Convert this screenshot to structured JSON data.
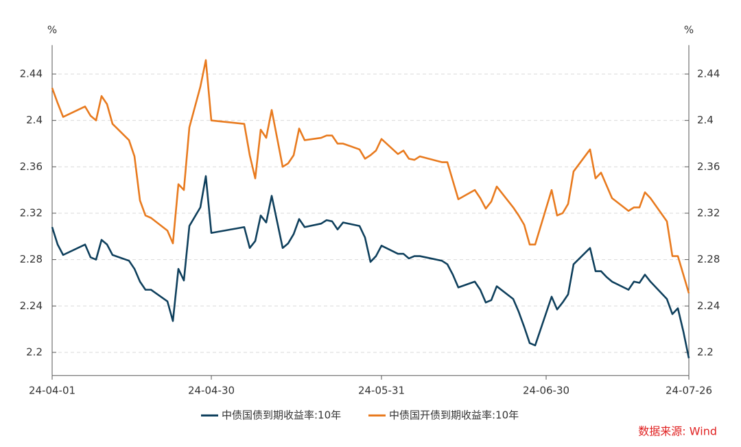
{
  "chart_data": {
    "type": "line",
    "y_unit": "%",
    "y2_unit": "%",
    "source": "数据来源: Wind",
    "x": [
      "24-04-01",
      "24-04-02",
      "24-04-03",
      "24-04-07",
      "24-04-08",
      "24-04-09",
      "24-04-10",
      "24-04-11",
      "24-04-12",
      "24-04-15",
      "24-04-16",
      "24-04-17",
      "24-04-18",
      "24-04-19",
      "24-04-22",
      "24-04-23",
      "24-04-24",
      "24-04-25",
      "24-04-26",
      "24-04-28",
      "24-04-29",
      "24-04-30",
      "24-05-06",
      "24-05-07",
      "24-05-08",
      "24-05-09",
      "24-05-10",
      "24-05-11",
      "24-05-13",
      "24-05-14",
      "24-05-15",
      "24-05-16",
      "24-05-17",
      "24-05-20",
      "24-05-21",
      "24-05-22",
      "24-05-23",
      "24-05-24",
      "24-05-27",
      "24-05-28",
      "24-05-29",
      "24-05-30",
      "24-05-31",
      "24-06-03",
      "24-06-04",
      "24-06-05",
      "24-06-06",
      "24-06-07",
      "24-06-11",
      "24-06-12",
      "24-06-13",
      "24-06-14",
      "24-06-17",
      "24-06-18",
      "24-06-19",
      "24-06-20",
      "24-06-21",
      "24-06-24",
      "24-06-25",
      "24-06-26",
      "24-06-27",
      "24-06-28",
      "24-07-01",
      "24-07-02",
      "24-07-03",
      "24-07-04",
      "24-07-05",
      "24-07-08",
      "24-07-09",
      "24-07-10",
      "24-07-11",
      "24-07-12",
      "24-07-15",
      "24-07-16",
      "24-07-17",
      "24-07-18",
      "24-07-19",
      "24-07-22",
      "24-07-23",
      "24-07-24",
      "24-07-25",
      "24-07-26"
    ],
    "series": [
      {
        "name": "中债国债到期收益率:10年",
        "color": "#0e3f5c",
        "values": [
          2.308,
          2.293,
          2.284,
          2.293,
          2.282,
          2.28,
          2.297,
          2.293,
          2.284,
          2.279,
          2.272,
          2.261,
          2.254,
          2.254,
          2.244,
          2.227,
          2.272,
          2.262,
          2.309,
          2.325,
          2.352,
          2.303,
          2.308,
          2.29,
          2.296,
          2.318,
          2.312,
          2.335,
          2.29,
          2.294,
          2.302,
          2.315,
          2.308,
          2.311,
          2.314,
          2.313,
          2.306,
          2.312,
          2.309,
          2.299,
          2.278,
          2.283,
          2.292,
          2.285,
          2.285,
          2.281,
          2.283,
          2.283,
          2.279,
          2.276,
          2.267,
          2.256,
          2.261,
          2.254,
          2.243,
          2.245,
          2.257,
          2.246,
          2.235,
          2.222,
          2.208,
          2.206,
          2.248,
          2.237,
          2.243,
          2.25,
          2.276,
          2.29,
          2.27,
          2.27,
          2.265,
          2.261,
          2.254,
          2.261,
          2.26,
          2.267,
          2.261,
          2.246,
          2.233,
          2.238,
          2.218,
          2.195
        ]
      },
      {
        "name": "中债国开债到期收益率:10年",
        "color": "#e87a1e",
        "axis": "y2",
        "values": [
          2.428,
          2.415,
          2.403,
          2.412,
          2.404,
          2.4,
          2.421,
          2.414,
          2.397,
          2.383,
          2.369,
          2.331,
          2.318,
          2.316,
          2.305,
          2.294,
          2.345,
          2.34,
          2.394,
          2.429,
          2.452,
          2.4,
          2.397,
          2.37,
          2.35,
          2.392,
          2.385,
          2.409,
          2.36,
          2.363,
          2.37,
          2.393,
          2.383,
          2.385,
          2.387,
          2.387,
          2.38,
          2.38,
          2.375,
          2.367,
          2.37,
          2.374,
          2.384,
          2.371,
          2.374,
          2.367,
          2.366,
          2.369,
          2.364,
          2.364,
          2.348,
          2.332,
          2.34,
          2.333,
          2.324,
          2.33,
          2.343,
          2.325,
          2.318,
          2.31,
          2.293,
          2.293,
          2.34,
          2.318,
          2.32,
          2.328,
          2.356,
          2.375,
          2.35,
          2.355,
          2.344,
          2.333,
          2.322,
          2.325,
          2.325,
          2.338,
          2.333,
          2.313,
          2.283,
          2.283,
          2.267,
          2.251
        ]
      }
    ],
    "xlim": [
      "24-04-01",
      "24-07-26"
    ],
    "xticks": [
      "24-04-01",
      "24-04-30",
      "24-05-31",
      "24-06-30",
      "24-07-26"
    ],
    "ylim": [
      2.18,
      2.465
    ],
    "yticks": [
      2.2,
      2.24,
      2.28,
      2.32,
      2.36,
      2.4,
      2.44
    ],
    "y2lim": [
      2.18,
      2.465
    ],
    "y2ticks": [
      2.2,
      2.24,
      2.28,
      2.32,
      2.36,
      2.4,
      2.44
    ],
    "grid": true,
    "legend": "bottom"
  }
}
